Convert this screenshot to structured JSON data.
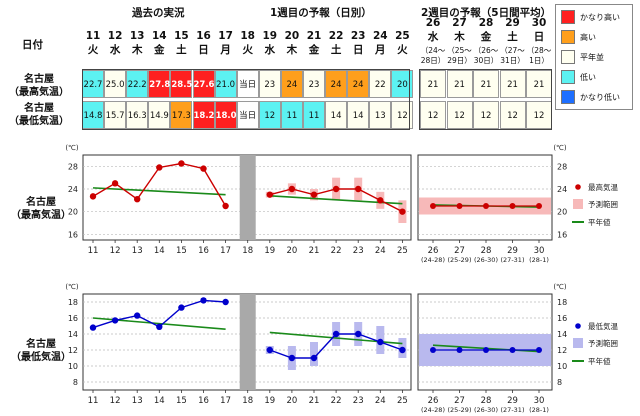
{
  "headers": {
    "date": "日付",
    "past": "過去の実況",
    "week1": "1週目の予報（日別）",
    "week2": "2週目の予報（5日間平均）"
  },
  "days": [
    {
      "d": "11",
      "w": "火"
    },
    {
      "d": "12",
      "w": "水"
    },
    {
      "d": "13",
      "w": "木"
    },
    {
      "d": "14",
      "w": "金"
    },
    {
      "d": "15",
      "w": "土"
    },
    {
      "d": "16",
      "w": "日"
    },
    {
      "d": "17",
      "w": "月"
    },
    {
      "d": "18",
      "w": "火"
    },
    {
      "d": "19",
      "w": "水"
    },
    {
      "d": "20",
      "w": "木"
    },
    {
      "d": "21",
      "w": "金"
    },
    {
      "d": "22",
      "w": "土"
    },
    {
      "d": "23",
      "w": "日"
    },
    {
      "d": "24",
      "w": "月"
    },
    {
      "d": "25",
      "w": "火"
    }
  ],
  "week2_cols": [
    {
      "d": "26",
      "w": "水",
      "r1": "（24〜",
      "r2": "28日）"
    },
    {
      "d": "27",
      "w": "木",
      "r1": "（25〜",
      "r2": "29日）"
    },
    {
      "d": "28",
      "w": "金",
      "r1": "（26〜",
      "r2": "30日）"
    },
    {
      "d": "29",
      "w": "土",
      "r1": "（27〜",
      "r2": "31日）"
    },
    {
      "d": "30",
      "w": "日",
      "r1": "（28〜",
      "r2": "1日）"
    }
  ],
  "rows": {
    "max_label_1": "名古屋",
    "max_label_2": "（最高気温）",
    "min_label_1": "名古屋",
    "min_label_2": "（最低気温）",
    "today": "当日"
  },
  "max_cells": [
    {
      "v": "22.7",
      "c": "low"
    },
    {
      "v": "25.0",
      "c": "normal"
    },
    {
      "v": "22.2",
      "c": "low"
    },
    {
      "v": "27.8",
      "c": "veryhigh"
    },
    {
      "v": "28.5",
      "c": "veryhigh"
    },
    {
      "v": "27.6",
      "c": "veryhigh"
    },
    {
      "v": "21.0",
      "c": "low"
    },
    {
      "v": "当日",
      "c": "today"
    },
    {
      "v": "23",
      "c": "normal"
    },
    {
      "v": "24",
      "c": "high"
    },
    {
      "v": "23",
      "c": "normal"
    },
    {
      "v": "24",
      "c": "high"
    },
    {
      "v": "24",
      "c": "high"
    },
    {
      "v": "22",
      "c": "normal"
    },
    {
      "v": "20",
      "c": "low"
    }
  ],
  "min_cells": [
    {
      "v": "14.8",
      "c": "low"
    },
    {
      "v": "15.7",
      "c": "normal"
    },
    {
      "v": "16.3",
      "c": "normal"
    },
    {
      "v": "14.9",
      "c": "normal"
    },
    {
      "v": "17.3",
      "c": "high"
    },
    {
      "v": "18.2",
      "c": "veryhigh"
    },
    {
      "v": "18.0",
      "c": "veryhigh"
    },
    {
      "v": "当日",
      "c": "today"
    },
    {
      "v": "12",
      "c": "low"
    },
    {
      "v": "11",
      "c": "low"
    },
    {
      "v": "11",
      "c": "low"
    },
    {
      "v": "14",
      "c": "normal"
    },
    {
      "v": "14",
      "c": "normal"
    },
    {
      "v": "13",
      "c": "normal"
    },
    {
      "v": "12",
      "c": "normal"
    }
  ],
  "week2_max": [
    "21",
    "21",
    "21",
    "21",
    "21"
  ],
  "week2_min": [
    "12",
    "12",
    "12",
    "12",
    "12"
  ],
  "colors": {
    "veryhigh": "#ff2020",
    "high": "#ff9f1c",
    "normal": "#fffff0",
    "low": "#5cf2f2",
    "verylow": "#1e6fff",
    "today": "#ffffff",
    "max_line": "#cc0000",
    "min_line": "#0000cc",
    "normal_line": "#1a8a1a",
    "max_band": "#f7b9b9",
    "min_band": "#b9b9ee"
  },
  "table_legend": [
    {
      "label": "かなり高い",
      "c": "veryhigh"
    },
    {
      "label": "高い",
      "c": "high"
    },
    {
      "label": "平年並",
      "c": "normal"
    },
    {
      "label": "低い",
      "c": "low"
    },
    {
      "label": "かなり低い",
      "c": "verylow"
    }
  ],
  "chart_data": [
    {
      "type": "line",
      "title": "名古屋（最高気温）",
      "unit": "(℃)",
      "ylim": [
        15,
        30
      ],
      "yticks": [
        16,
        20,
        24,
        28
      ],
      "x": [
        "11",
        "12",
        "13",
        "14",
        "15",
        "16",
        "17",
        "18",
        "19",
        "20",
        "21",
        "22",
        "23",
        "24",
        "25"
      ],
      "observed": [
        22.7,
        25.0,
        22.2,
        27.8,
        28.5,
        27.6,
        21.0
      ],
      "forecast": [
        23,
        24,
        23,
        24,
        24,
        22,
        20
      ],
      "forecast_range": [
        [
          22.5,
          23.5
        ],
        [
          23,
          25
        ],
        [
          22,
          24
        ],
        [
          22,
          26
        ],
        [
          22,
          26
        ],
        [
          20.5,
          23.5
        ],
        [
          18,
          22
        ]
      ],
      "normal_obs": [
        24.2,
        23.0
      ],
      "normal_fc": [
        22.8,
        21.4
      ],
      "week2_x": [
        "26",
        "27",
        "28",
        "29",
        "30"
      ],
      "week2_ticklabels": [
        "(24-28)",
        "(25-29)",
        "(26-30)",
        "(27-31)",
        "(28-1)"
      ],
      "week2_forecast": [
        21,
        21,
        21,
        21,
        21
      ],
      "week2_range": [
        19.5,
        22.5
      ],
      "week2_normal": [
        21.2,
        20.8
      ],
      "legend": [
        "最高気温",
        "予測範囲",
        "平年値"
      ]
    },
    {
      "type": "line",
      "title": "名古屋（最低気温）",
      "unit": "(℃)",
      "ylim": [
        7,
        19
      ],
      "yticks": [
        8,
        10,
        12,
        14,
        16,
        18
      ],
      "x": [
        "11",
        "12",
        "13",
        "14",
        "15",
        "16",
        "17",
        "18",
        "19",
        "20",
        "21",
        "22",
        "23",
        "24",
        "25"
      ],
      "observed": [
        14.8,
        15.7,
        16.3,
        14.9,
        17.3,
        18.2,
        18.0
      ],
      "forecast": [
        12,
        11,
        11,
        14,
        14,
        13,
        12
      ],
      "forecast_range": [
        [
          11.5,
          12.5
        ],
        [
          9.5,
          12.5
        ],
        [
          10,
          13
        ],
        [
          12.5,
          15.5
        ],
        [
          12.5,
          15.5
        ],
        [
          11.5,
          15
        ],
        [
          11,
          13.5
        ]
      ],
      "normal_obs": [
        16.0,
        14.6
      ],
      "normal_fc": [
        14.2,
        12.8
      ],
      "week2_x": [
        "26",
        "27",
        "28",
        "29",
        "30"
      ],
      "week2_ticklabels": [
        "(24-28)",
        "(25-29)",
        "(26-30)",
        "(27-31)",
        "(28-1)"
      ],
      "week2_forecast": [
        12,
        12,
        12,
        12,
        12
      ],
      "week2_range": [
        10,
        14
      ],
      "week2_normal": [
        12.6,
        11.8
      ],
      "legend": [
        "最低気温",
        "予測範囲",
        "平年値"
      ]
    }
  ]
}
